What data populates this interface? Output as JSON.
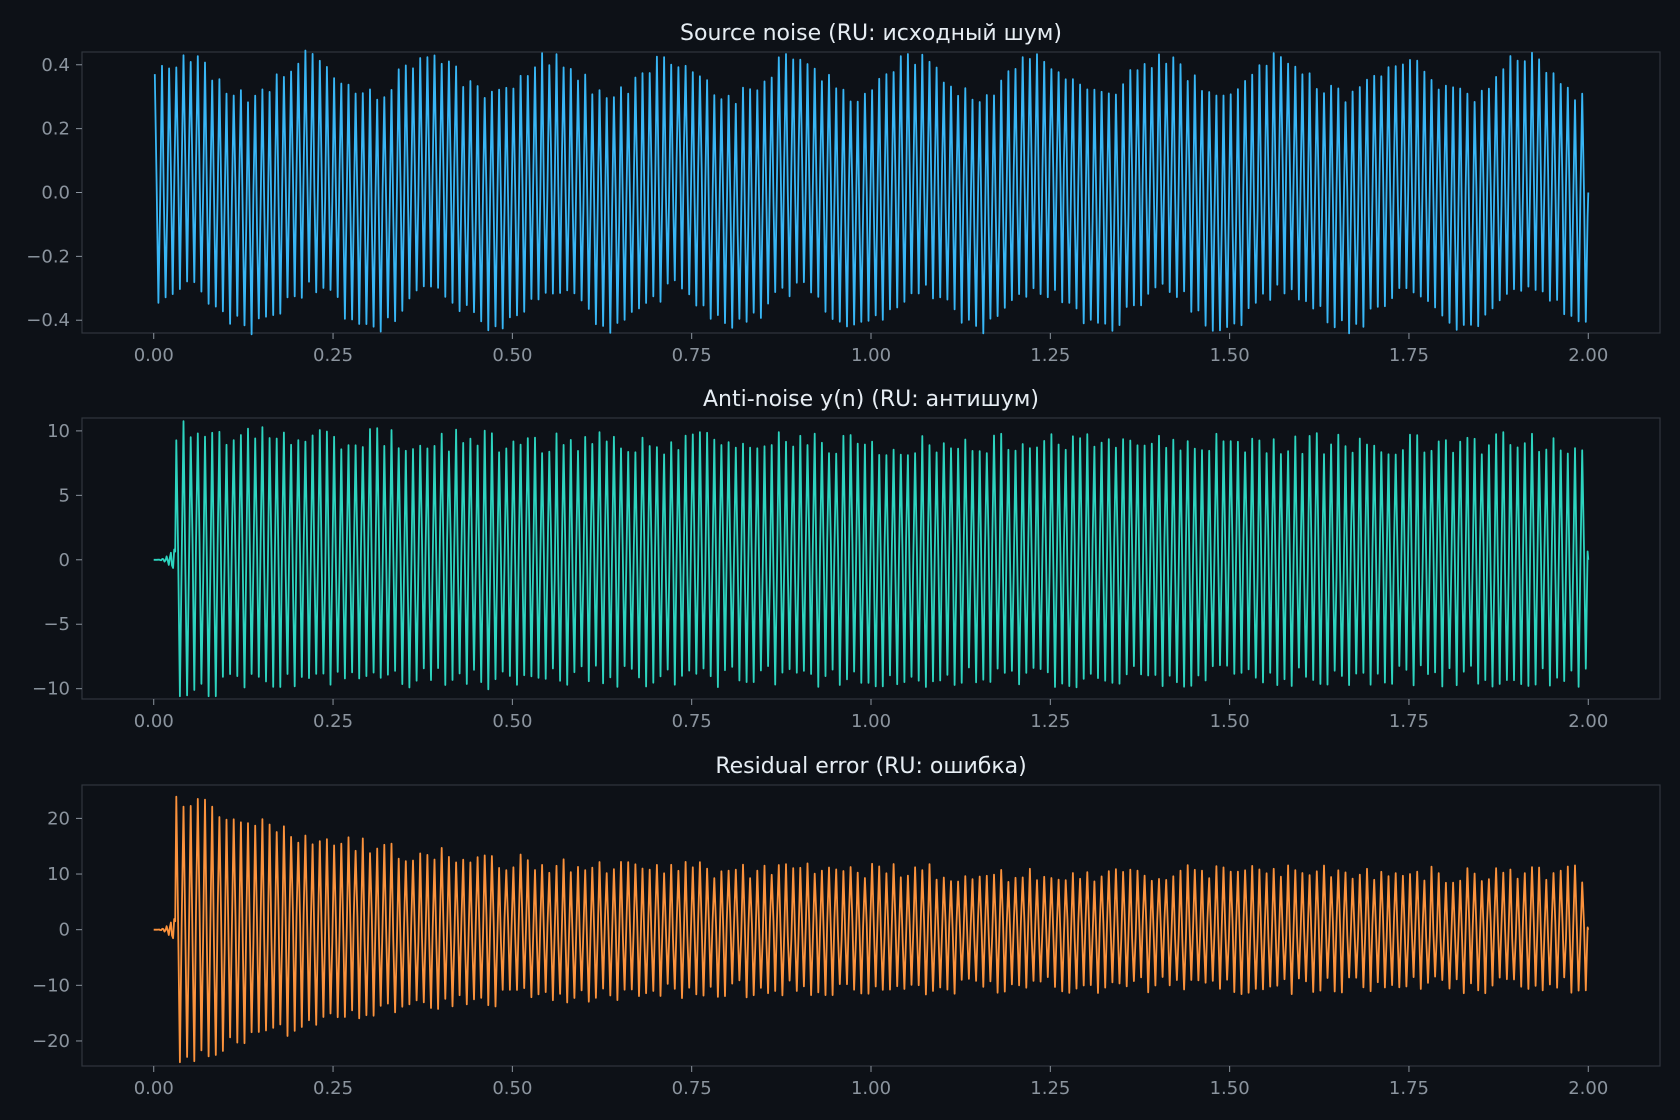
{
  "theme": {
    "background": "#0d1117",
    "panel_border": "#30363d",
    "tick_color": "#8b949e",
    "title_color": "#e6edf3"
  },
  "chart_data": [
    {
      "type": "line",
      "title": "Source noise (RU: исходный шум)",
      "color": "#38b6f5",
      "xlim": [
        -0.1,
        2.1
      ],
      "ylim": [
        -0.44,
        0.44
      ],
      "xticks": [
        0.0,
        0.25,
        0.5,
        0.75,
        1.0,
        1.25,
        1.5,
        1.75,
        2.0
      ],
      "xtick_labels": [
        "0.00",
        "0.25",
        "0.50",
        "0.75",
        "1.00",
        "1.25",
        "1.50",
        "1.75",
        "2.00"
      ],
      "yticks": [
        -0.4,
        -0.2,
        0.0,
        0.2,
        0.4
      ],
      "ytick_labels": [
        "−0.4",
        "−0.2",
        "0.0",
        "0.2",
        "0.4"
      ],
      "grid": false,
      "signal": {
        "x_start": 0.0,
        "x_end": 2.0,
        "cycles": 200,
        "peak_mean": 0.36,
        "peak_jitter": 0.025,
        "midline_wobble": 0.06,
        "onset": 0.0,
        "onset_peak": 0.36,
        "settle_peak": 0.36,
        "end_value": 0.0
      }
    },
    {
      "type": "line",
      "title": "Anti-noise y(n) (RU: антишум)",
      "color": "#2dd4bf",
      "xlim": [
        -0.1,
        2.1
      ],
      "ylim": [
        -10.8,
        11.0
      ],
      "xticks": [
        0.0,
        0.25,
        0.5,
        0.75,
        1.0,
        1.25,
        1.5,
        1.75,
        2.0
      ],
      "xtick_labels": [
        "0.00",
        "0.25",
        "0.50",
        "0.75",
        "1.00",
        "1.25",
        "1.50",
        "1.75",
        "2.00"
      ],
      "yticks": [
        -10,
        -5,
        0,
        5,
        10
      ],
      "ytick_labels": [
        "−10",
        "−5",
        "0",
        "5",
        "10"
      ],
      "grid": false,
      "signal": {
        "x_start": 0.0,
        "x_end": 2.0,
        "cycles": 200,
        "peak_mean": 9.0,
        "peak_jitter": 0.9,
        "midline_wobble": 0.0,
        "onset": 0.03,
        "onset_peak": 10.0,
        "settle_peak": 9.0,
        "end_value": 0.0
      }
    },
    {
      "type": "line",
      "title": "Residual error (RU: ошибка)",
      "color": "#fb923c",
      "xlim": [
        -0.1,
        2.1
      ],
      "ylim": [
        -24.5,
        26.0
      ],
      "xticks": [
        0.0,
        0.25,
        0.5,
        0.75,
        1.0,
        1.25,
        1.5,
        1.75,
        2.0
      ],
      "xtick_labels": [
        "0.00",
        "0.25",
        "0.50",
        "0.75",
        "1.00",
        "1.25",
        "1.50",
        "1.75",
        "2.00"
      ],
      "yticks": [
        -20,
        -10,
        0,
        10,
        20
      ],
      "ytick_labels": [
        "−20",
        "−10",
        "0",
        "10",
        "20"
      ],
      "grid": false,
      "signal": {
        "x_start": 0.0,
        "x_end": 2.0,
        "cycles": 200,
        "peak_mean": 10.0,
        "peak_jitter": 1.6,
        "midline_wobble": 0.0,
        "onset": 0.03,
        "onset_peak": 24.0,
        "settle_peak": 10.0,
        "end_value": 0.0
      }
    }
  ]
}
